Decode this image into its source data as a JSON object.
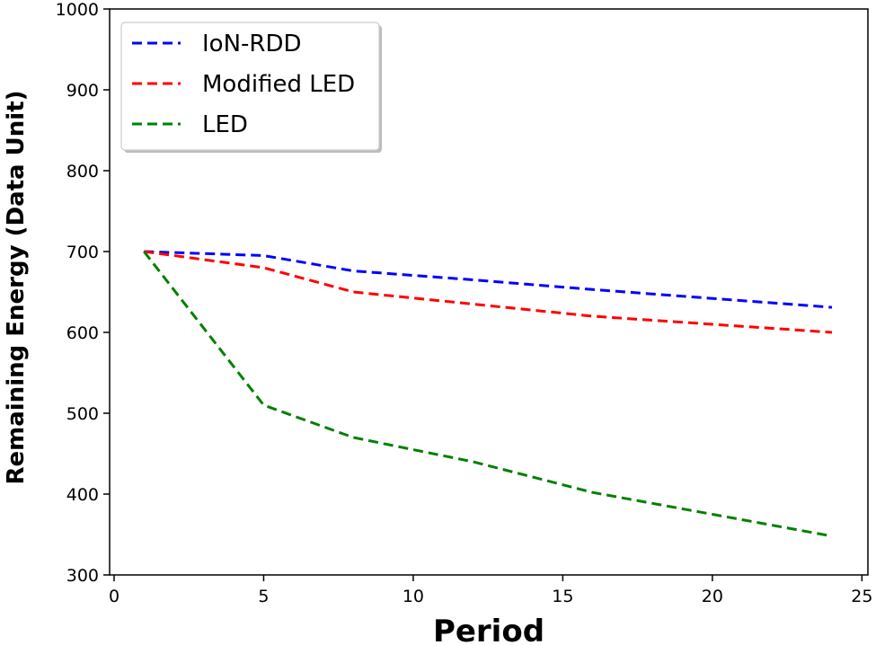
{
  "chart_data": {
    "type": "line",
    "title": "",
    "xlabel": "Period",
    "ylabel": "Remaining Energy (Data Unit)",
    "xlim": [
      -0.15,
      25.2
    ],
    "ylim": [
      300,
      1000
    ],
    "xticks": [
      0,
      5,
      10,
      15,
      20,
      25
    ],
    "yticks": [
      300,
      400,
      500,
      600,
      700,
      800,
      900,
      1000
    ],
    "legend_position": "top-left",
    "series": [
      {
        "name": "IoN-RDD",
        "color": "#0000ff",
        "x": [
          1,
          5,
          8,
          12,
          16,
          20,
          24
        ],
        "y": [
          700,
          695,
          676,
          665,
          653,
          642,
          631
        ]
      },
      {
        "name": "Modified LED",
        "color": "#ff0000",
        "x": [
          1,
          5,
          8,
          12,
          16,
          20,
          24
        ],
        "y": [
          700,
          680,
          650,
          635,
          620,
          610,
          600
        ]
      },
      {
        "name": "LED",
        "color": "#008000",
        "x": [
          1,
          5,
          8,
          12,
          16,
          20,
          24
        ],
        "y": [
          700,
          510,
          470,
          440,
          402,
          375,
          348
        ]
      }
    ]
  }
}
